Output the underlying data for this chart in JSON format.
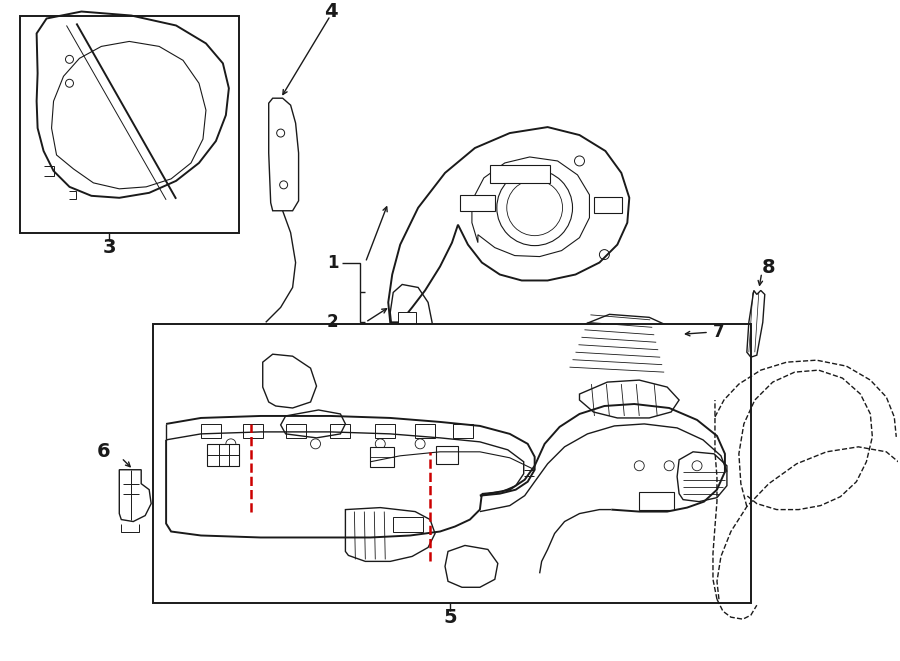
{
  "background_color": "#ffffff",
  "line_color": "#1a1a1a",
  "red_line_color": "#cc0000",
  "figsize": [
    9.0,
    6.61
  ],
  "dpi": 100,
  "lw": 1.0,
  "lw_heavy": 1.4,
  "lw_thin": 0.6
}
